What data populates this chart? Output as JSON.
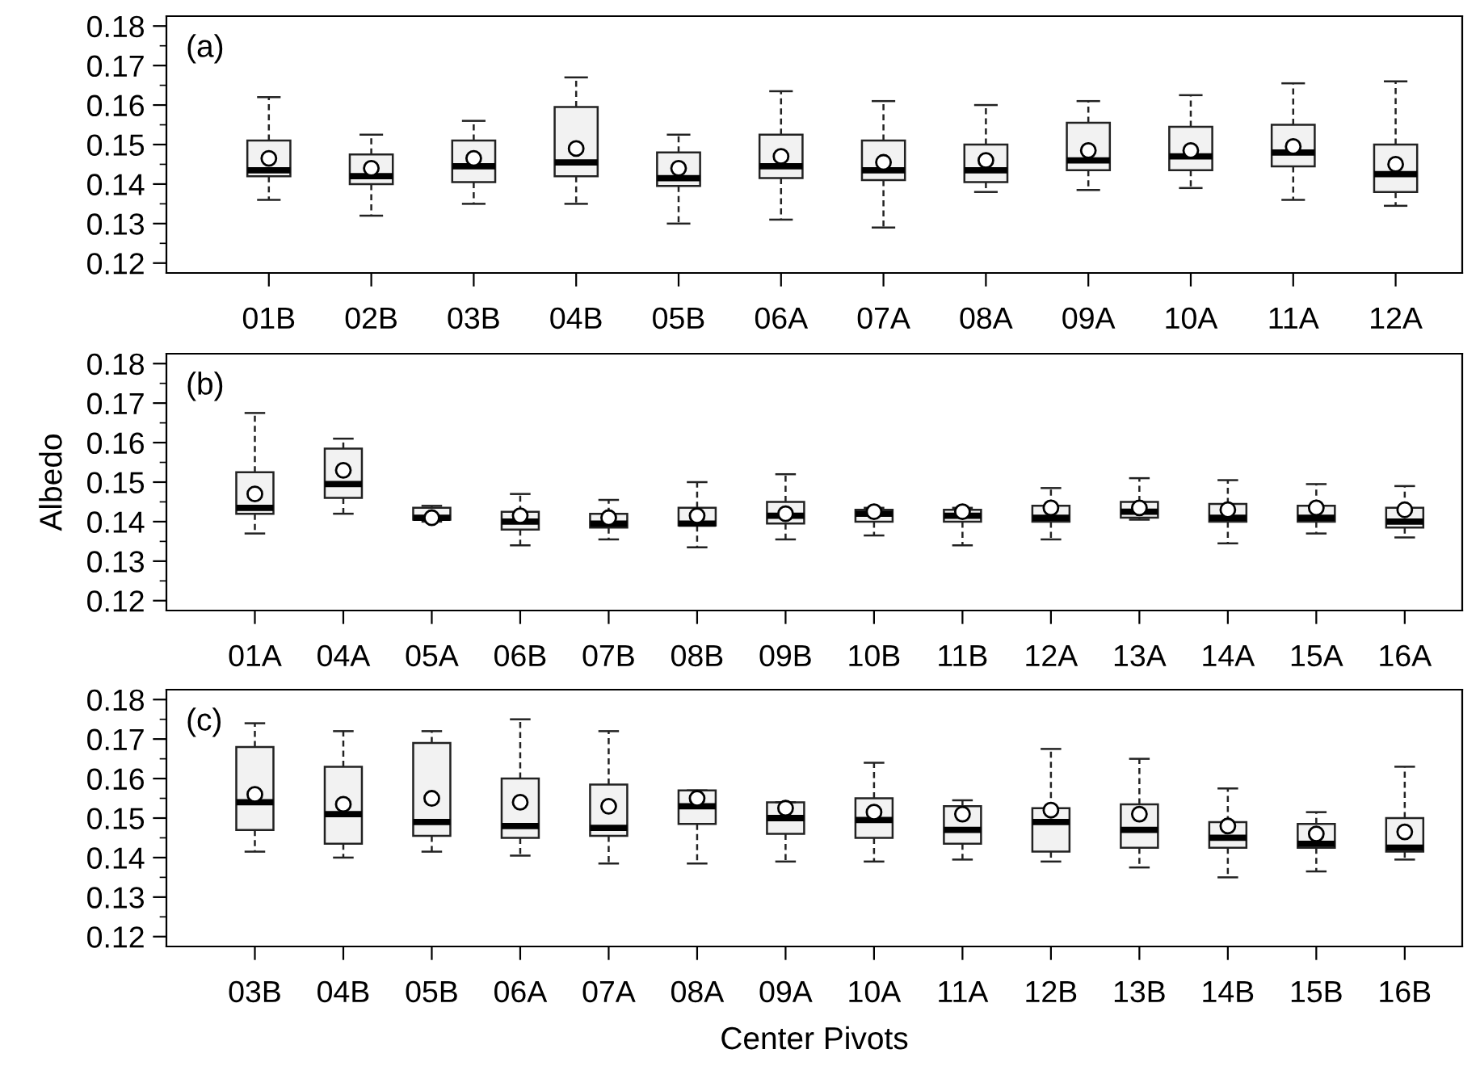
{
  "chart_data": [
    {
      "type": "box",
      "annotations": [
        "(a)"
      ],
      "grid": false,
      "color": "#f2f2f2",
      "marker": "circle",
      "categories": [
        "01B",
        "02B",
        "03B",
        "04B",
        "05B",
        "06A",
        "07A",
        "08A",
        "09A",
        "10A",
        "11A",
        "12A"
      ],
      "boxes": [
        {
          "low": 0.136,
          "q1": 0.142,
          "median": 0.1435,
          "q3": 0.151,
          "high": 0.162,
          "mean": 0.1465
        },
        {
          "low": 0.132,
          "q1": 0.14,
          "median": 0.142,
          "q3": 0.1475,
          "high": 0.1525,
          "mean": 0.144
        },
        {
          "low": 0.135,
          "q1": 0.1405,
          "median": 0.1445,
          "q3": 0.151,
          "high": 0.156,
          "mean": 0.1465
        },
        {
          "low": 0.135,
          "q1": 0.142,
          "median": 0.1455,
          "q3": 0.1595,
          "high": 0.167,
          "mean": 0.149
        },
        {
          "low": 0.13,
          "q1": 0.1395,
          "median": 0.1415,
          "q3": 0.148,
          "high": 0.1525,
          "mean": 0.144
        },
        {
          "low": 0.131,
          "q1": 0.1415,
          "median": 0.1445,
          "q3": 0.1525,
          "high": 0.1635,
          "mean": 0.147
        },
        {
          "low": 0.129,
          "q1": 0.141,
          "median": 0.1435,
          "q3": 0.151,
          "high": 0.161,
          "mean": 0.1455
        },
        {
          "low": 0.138,
          "q1": 0.1405,
          "median": 0.1435,
          "q3": 0.15,
          "high": 0.16,
          "mean": 0.146
        },
        {
          "low": 0.1385,
          "q1": 0.1435,
          "median": 0.146,
          "q3": 0.1555,
          "high": 0.161,
          "mean": 0.1485
        },
        {
          "low": 0.139,
          "q1": 0.1435,
          "median": 0.147,
          "q3": 0.1545,
          "high": 0.1625,
          "mean": 0.1485
        },
        {
          "low": 0.136,
          "q1": 0.1445,
          "median": 0.148,
          "q3": 0.155,
          "high": 0.1655,
          "mean": 0.1495
        },
        {
          "low": 0.1345,
          "q1": 0.138,
          "median": 0.1425,
          "q3": 0.15,
          "high": 0.166,
          "mean": 0.145
        }
      ],
      "ylim": [
        0.1175,
        0.1825
      ],
      "yticks": [
        0.12,
        {
          "value": 0.125,
          "label": null
        },
        0.13,
        {
          "value": 0.135,
          "label": null
        },
        0.14,
        {
          "value": 0.145,
          "label": null
        },
        0.15,
        {
          "value": 0.155,
          "label": null
        },
        0.16,
        {
          "value": 0.165,
          "label": null
        },
        0.17,
        {
          "value": 0.175,
          "label": null
        },
        0.18
      ]
    },
    {
      "type": "box",
      "annotations": [
        "(b)"
      ],
      "grid": false,
      "color": "#f2f2f2",
      "marker": "circle",
      "ylabel": "Albedo",
      "categories": [
        "01A",
        "04A",
        "05A",
        "06B",
        "07B",
        "08B",
        "09B",
        "10B",
        "11B",
        "12A",
        "13A",
        "14A",
        "15A",
        "16A"
      ],
      "boxes": [
        {
          "low": 0.137,
          "q1": 0.142,
          "median": 0.1435,
          "q3": 0.1525,
          "high": 0.1675,
          "mean": 0.147
        },
        {
          "low": 0.142,
          "q1": 0.146,
          "median": 0.1495,
          "q3": 0.1585,
          "high": 0.161,
          "mean": 0.153
        },
        {
          "low": 0.14,
          "q1": 0.1405,
          "median": 0.141,
          "q3": 0.1435,
          "high": 0.144,
          "mean": 0.141
        },
        {
          "low": 0.134,
          "q1": 0.138,
          "median": 0.14,
          "q3": 0.1425,
          "high": 0.147,
          "mean": 0.1415
        },
        {
          "low": 0.1355,
          "q1": 0.1385,
          "median": 0.1395,
          "q3": 0.142,
          "high": 0.1455,
          "mean": 0.141
        },
        {
          "low": 0.1335,
          "q1": 0.139,
          "median": 0.1395,
          "q3": 0.1435,
          "high": 0.15,
          "mean": 0.1415
        },
        {
          "low": 0.1355,
          "q1": 0.1395,
          "median": 0.1415,
          "q3": 0.145,
          "high": 0.152,
          "mean": 0.142
        },
        {
          "low": 0.1365,
          "q1": 0.14,
          "median": 0.142,
          "q3": 0.143,
          "high": 0.1435,
          "mean": 0.1425
        },
        {
          "low": 0.134,
          "q1": 0.14,
          "median": 0.1415,
          "q3": 0.143,
          "high": 0.1435,
          "mean": 0.1425
        },
        {
          "low": 0.1355,
          "q1": 0.14,
          "median": 0.141,
          "q3": 0.144,
          "high": 0.1485,
          "mean": 0.1435
        },
        {
          "low": 0.1405,
          "q1": 0.141,
          "median": 0.1425,
          "q3": 0.145,
          "high": 0.151,
          "mean": 0.1435
        },
        {
          "low": 0.1345,
          "q1": 0.14,
          "median": 0.141,
          "q3": 0.1445,
          "high": 0.1505,
          "mean": 0.143
        },
        {
          "low": 0.137,
          "q1": 0.14,
          "median": 0.141,
          "q3": 0.144,
          "high": 0.1495,
          "mean": 0.1435
        },
        {
          "low": 0.136,
          "q1": 0.1385,
          "median": 0.14,
          "q3": 0.1435,
          "high": 0.149,
          "mean": 0.143
        }
      ],
      "ylim": [
        0.1175,
        0.1825
      ],
      "yticks": [
        0.12,
        {
          "value": 0.125,
          "label": null
        },
        0.13,
        {
          "value": 0.135,
          "label": null
        },
        0.14,
        {
          "value": 0.145,
          "label": null
        },
        0.15,
        {
          "value": 0.155,
          "label": null
        },
        0.16,
        {
          "value": 0.165,
          "label": null
        },
        0.17,
        {
          "value": 0.175,
          "label": null
        },
        0.18
      ]
    },
    {
      "type": "box",
      "annotations": [
        "(c)"
      ],
      "grid": false,
      "color": "#f2f2f2",
      "marker": "circle",
      "xlabel": "Center Pivots",
      "categories": [
        "03B",
        "04B",
        "05B",
        "06A",
        "07A",
        "08A",
        "09A",
        "10A",
        "11A",
        "12B",
        "13B",
        "14B",
        "15B",
        "16B"
      ],
      "boxes": [
        {
          "low": 0.1415,
          "q1": 0.147,
          "median": 0.154,
          "q3": 0.168,
          "high": 0.174,
          "mean": 0.156
        },
        {
          "low": 0.14,
          "q1": 0.1435,
          "median": 0.151,
          "q3": 0.163,
          "high": 0.172,
          "mean": 0.1535
        },
        {
          "low": 0.1415,
          "q1": 0.1455,
          "median": 0.149,
          "q3": 0.169,
          "high": 0.172,
          "mean": 0.155
        },
        {
          "low": 0.1405,
          "q1": 0.145,
          "median": 0.148,
          "q3": 0.16,
          "high": 0.175,
          "mean": 0.154
        },
        {
          "low": 0.1385,
          "q1": 0.1455,
          "median": 0.1475,
          "q3": 0.1585,
          "high": 0.172,
          "mean": 0.153
        },
        {
          "low": 0.1385,
          "q1": 0.1485,
          "median": 0.153,
          "q3": 0.157,
          "high": 0.157,
          "mean": 0.155
        },
        {
          "low": 0.139,
          "q1": 0.146,
          "median": 0.15,
          "q3": 0.154,
          "high": 0.154,
          "mean": 0.1525
        },
        {
          "low": 0.139,
          "q1": 0.145,
          "median": 0.1495,
          "q3": 0.155,
          "high": 0.164,
          "mean": 0.1515
        },
        {
          "low": 0.1395,
          "q1": 0.1435,
          "median": 0.147,
          "q3": 0.153,
          "high": 0.1545,
          "mean": 0.151
        },
        {
          "low": 0.139,
          "q1": 0.1415,
          "median": 0.149,
          "q3": 0.1525,
          "high": 0.1675,
          "mean": 0.152
        },
        {
          "low": 0.1375,
          "q1": 0.1425,
          "median": 0.147,
          "q3": 0.1535,
          "high": 0.165,
          "mean": 0.151
        },
        {
          "low": 0.135,
          "q1": 0.1425,
          "median": 0.145,
          "q3": 0.149,
          "high": 0.1575,
          "mean": 0.148
        },
        {
          "low": 0.1365,
          "q1": 0.1425,
          "median": 0.1435,
          "q3": 0.1485,
          "high": 0.1515,
          "mean": 0.146
        },
        {
          "low": 0.1395,
          "q1": 0.1415,
          "median": 0.1425,
          "q3": 0.15,
          "high": 0.163,
          "mean": 0.1465
        }
      ],
      "ylim": [
        0.1175,
        0.1825
      ],
      "yticks": [
        0.12,
        {
          "value": 0.125,
          "label": null
        },
        0.13,
        {
          "value": 0.135,
          "label": null
        },
        0.14,
        {
          "value": 0.145,
          "label": null
        },
        0.15,
        {
          "value": 0.155,
          "label": null
        },
        0.16,
        {
          "value": 0.165,
          "label": null
        },
        0.17,
        {
          "value": 0.175,
          "label": null
        },
        0.18
      ]
    }
  ]
}
